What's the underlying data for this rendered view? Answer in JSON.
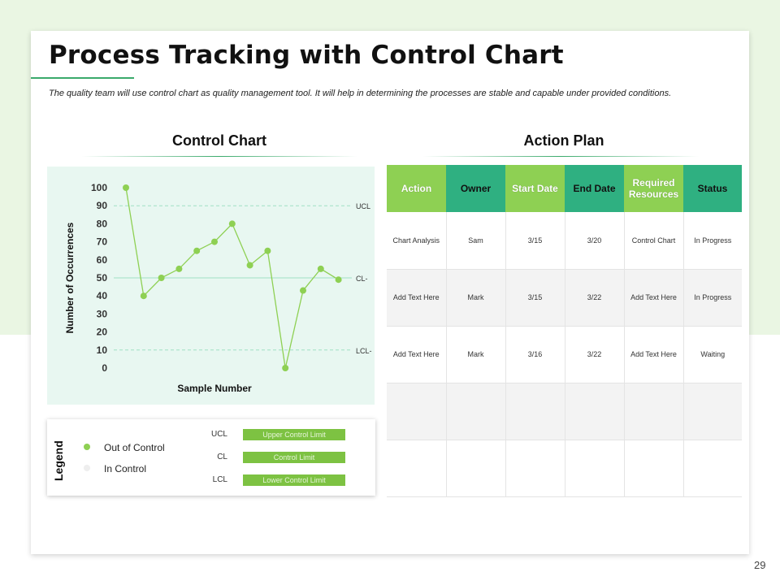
{
  "slide": {
    "title": "Process Tracking with Control Chart",
    "subtitle": "The quality team will use control chart as quality management tool. It will help in determining the processes are stable and capable under provided conditions.",
    "page_number": "29"
  },
  "control_chart": {
    "heading": "Control Chart",
    "colors": {
      "panel": "#e8f7f1",
      "line": "#8ed053",
      "limit": "#9fe0c4"
    }
  },
  "chart_data": {
    "type": "line",
    "xlabel": "Sample Number",
    "ylabel": "Number of Occurrences",
    "ylim": [
      0,
      100
    ],
    "yticks": [
      "0",
      "10",
      "20",
      "30",
      "40",
      "50",
      "60",
      "70",
      "80",
      "90",
      "100"
    ],
    "values": [
      100,
      40,
      50,
      55,
      65,
      70,
      80,
      57,
      65,
      0,
      43,
      55,
      49
    ],
    "limits": [
      {
        "label": "UCL",
        "value": 90
      },
      {
        "label": "CL-",
        "value": 50
      },
      {
        "label": "LCL-",
        "value": 10
      }
    ],
    "grid": false
  },
  "legend": {
    "title": "Legend",
    "items": [
      {
        "label": "Out of Control",
        "color": "#8ed053"
      },
      {
        "label": "In Control",
        "color": "#eeeeee"
      }
    ],
    "limits": [
      {
        "code": "UCL",
        "desc": "Upper Control Limit"
      },
      {
        "code": "CL",
        "desc": "Control Limit"
      },
      {
        "code": "LCL",
        "desc": "Lower Control Limit"
      }
    ]
  },
  "action_plan": {
    "heading": "Action Plan",
    "headers": [
      "Action",
      "Owner",
      "Start Date",
      "End Date",
      "Required Resources",
      "Status"
    ],
    "rows": [
      [
        "Chart Analysis",
        "Sam",
        "3/15",
        "3/20",
        "Control Chart",
        "In Progress"
      ],
      [
        "Add Text Here",
        "Mark",
        "3/15",
        "3/22",
        "Add Text Here",
        "In Progress"
      ],
      [
        "Add Text Here",
        "Mark",
        "3/16",
        "3/22",
        "Add Text Here",
        "Waiting"
      ],
      [
        "",
        "",
        "",
        "",
        "",
        ""
      ],
      [
        "",
        "",
        "",
        "",
        "",
        ""
      ]
    ]
  }
}
